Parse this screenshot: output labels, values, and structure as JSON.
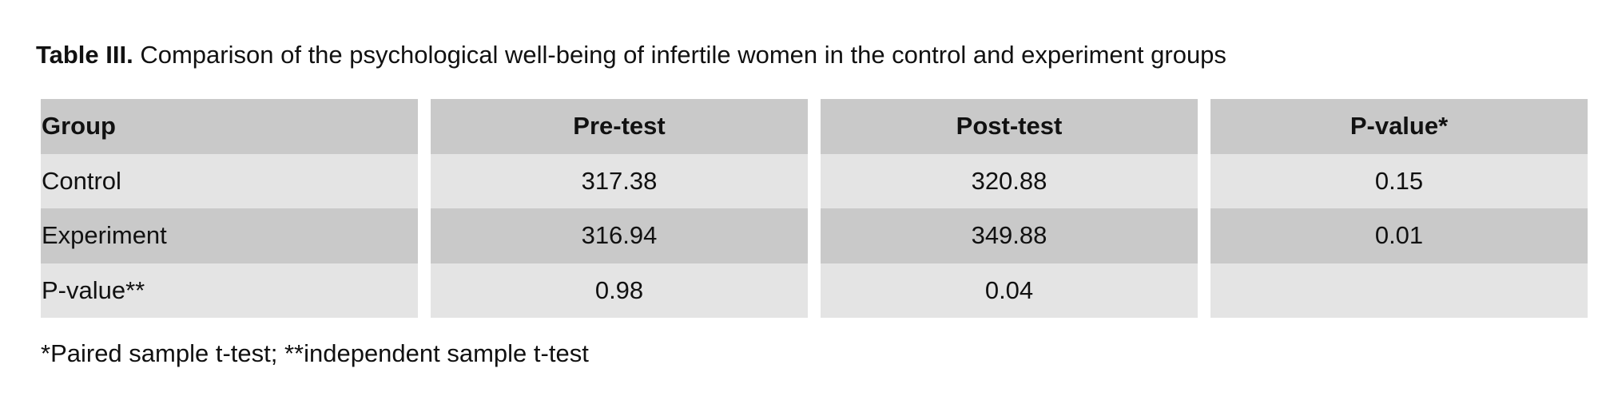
{
  "caption": {
    "label": "Table III.",
    "text": "Comparison of the psychological well-being of infertile women in the control and experiment groups"
  },
  "table": {
    "headers": [
      "Group",
      "Pre-test",
      "Post-test",
      "P-value*"
    ],
    "rows": [
      [
        "Control",
        "317.38",
        "320.88",
        "0.15"
      ],
      [
        "Experiment",
        "316.94",
        "349.88",
        "0.01"
      ],
      [
        "P-value**",
        "0.98",
        "0.04",
        ""
      ]
    ]
  },
  "footnote": "*Paired sample t-test; **independent sample t-test",
  "colors": {
    "dark_row": "#c9c9c9",
    "light_row": "#e4e4e4"
  }
}
